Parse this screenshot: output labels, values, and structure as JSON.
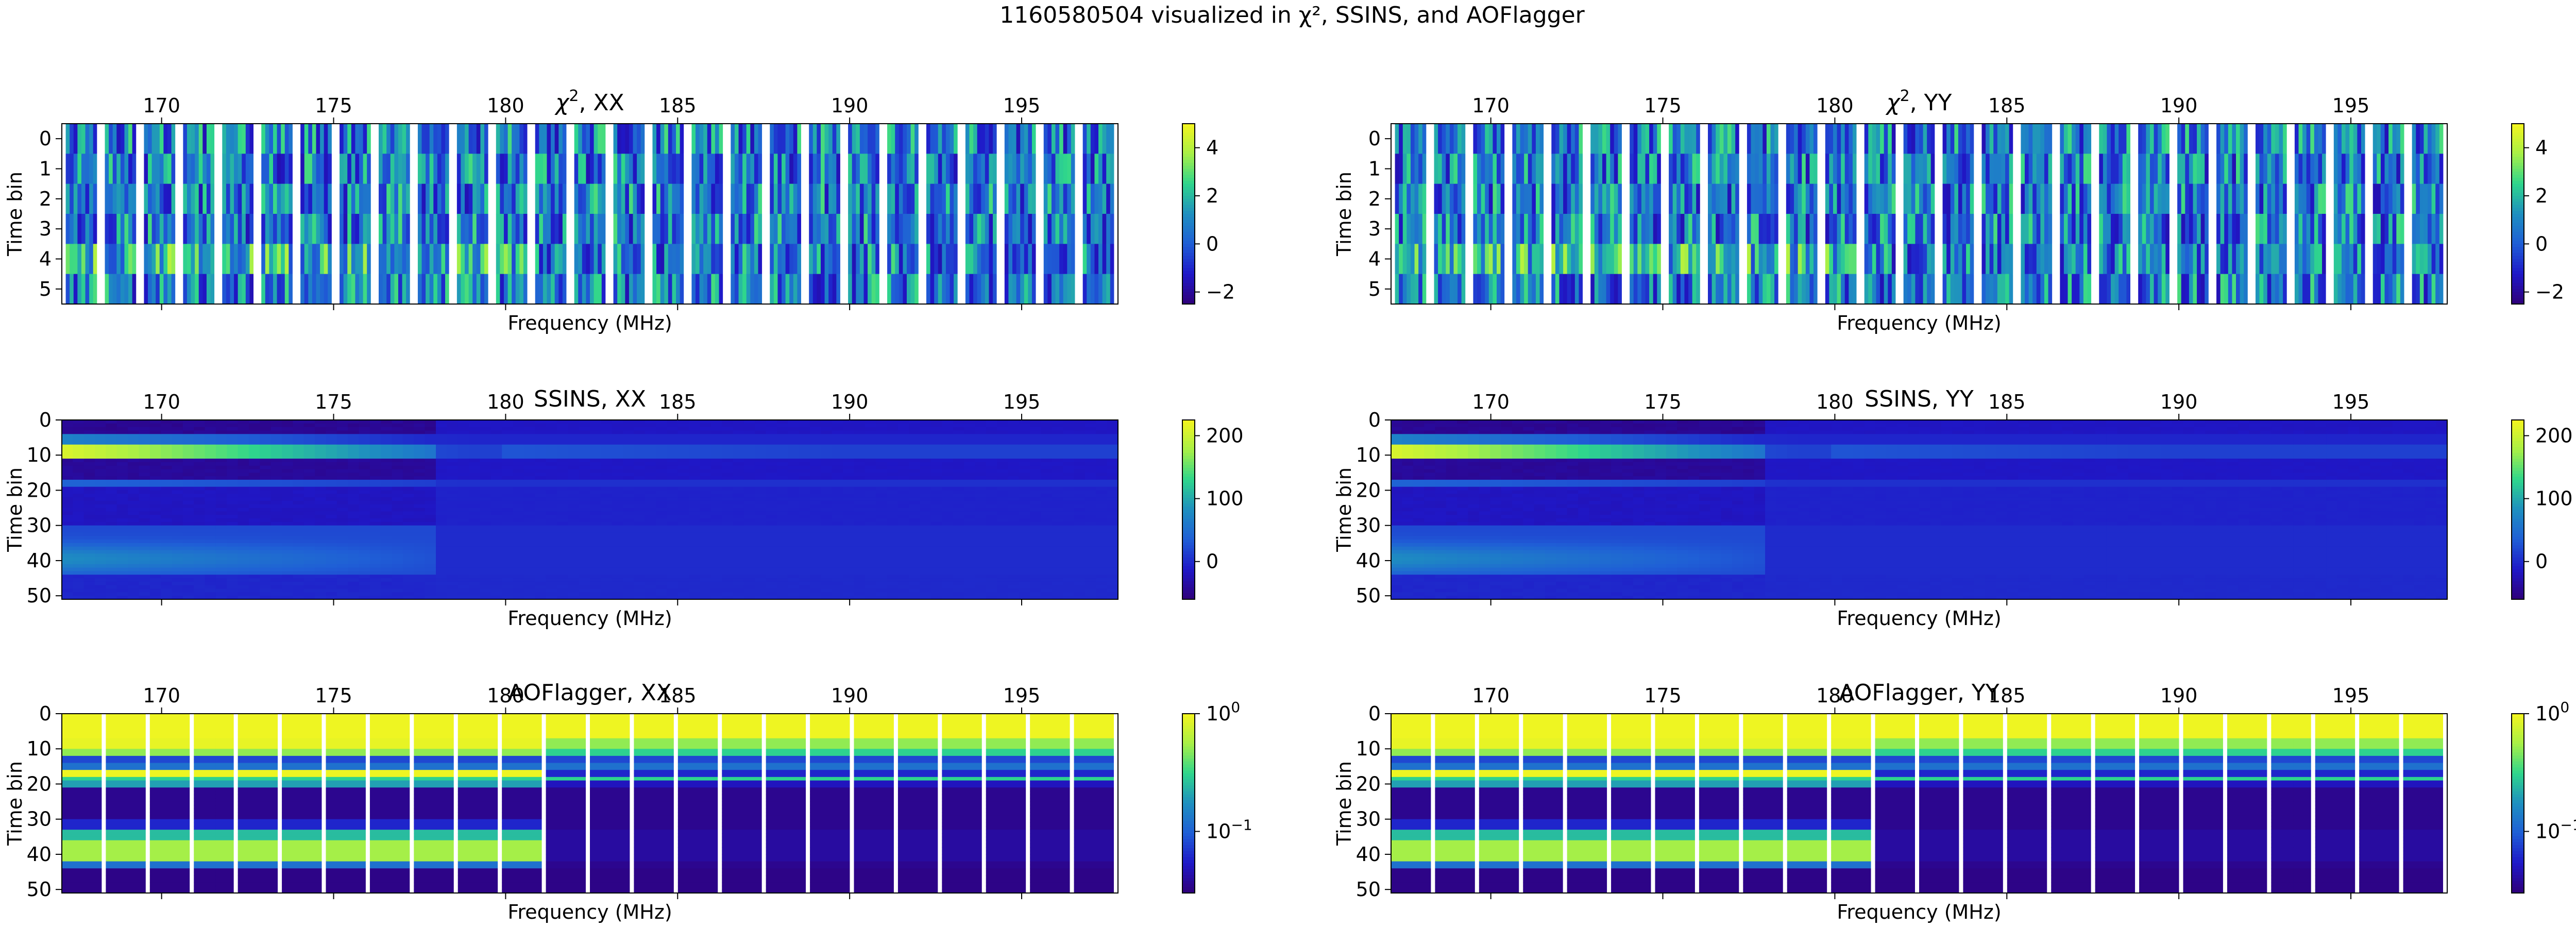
{
  "figure": {
    "suptitle": "1160580504 visualized in χ², SSINS, and AOFlagger"
  },
  "colormap": [
    "#30007a",
    "#1f18c8",
    "#1f5fd6",
    "#1e8fc0",
    "#2fd68c",
    "#a8f046",
    "#f5f51e"
  ],
  "chart_data": [
    {
      "type": "heatmap",
      "id": "chi2-xx",
      "title": "χ², XX",
      "title_main": "χ",
      "title_sup": "2",
      "title_rest": ", XX",
      "xlabel": "Frequency (MHz)",
      "ylabel": "Time bin",
      "xlim": [
        167.1,
        197.8
      ],
      "ylim": [
        5.5,
        -0.5
      ],
      "xticks": [
        "170",
        "175",
        "180",
        "185",
        "190",
        "195"
      ],
      "yticks": [
        "0",
        "1",
        "2",
        "3",
        "4",
        "5"
      ],
      "colorbar": {
        "scale": "linear",
        "vmin": -2.5,
        "vmax": 5,
        "ticks": [
          "4",
          "2",
          "0",
          "−2"
        ]
      }
    },
    {
      "type": "heatmap",
      "id": "chi2-yy",
      "title": "χ², YY",
      "title_main": "χ",
      "title_sup": "2",
      "title_rest": ", YY",
      "xlabel": "Frequency (MHz)",
      "ylabel": "Time bin",
      "xlim": [
        167.1,
        197.8
      ],
      "ylim": [
        5.5,
        -0.5
      ],
      "xticks": [
        "170",
        "175",
        "180",
        "185",
        "190",
        "195"
      ],
      "yticks": [
        "0",
        "1",
        "2",
        "3",
        "4",
        "5"
      ],
      "colorbar": {
        "scale": "linear",
        "vmin": -2.5,
        "vmax": 5,
        "ticks": [
          "4",
          "2",
          "0",
          "−2"
        ]
      }
    },
    {
      "type": "heatmap",
      "id": "ssins-xx",
      "title": "SSINS, XX",
      "xlabel": "Frequency (MHz)",
      "ylabel": "Time bin",
      "xlim": [
        167.1,
        197.8
      ],
      "ylim": [
        51,
        0
      ],
      "xticks": [
        "170",
        "175",
        "180",
        "185",
        "190",
        "195"
      ],
      "yticks": [
        "0",
        "10",
        "20",
        "30",
        "40",
        "50"
      ],
      "colorbar": {
        "scale": "linear",
        "vmin": -60,
        "vmax": 225,
        "ticks": [
          "200",
          "100",
          "0"
        ]
      }
    },
    {
      "type": "heatmap",
      "id": "ssins-yy",
      "title": "SSINS, YY",
      "xlabel": "Frequency (MHz)",
      "ylabel": "Time bin",
      "xlim": [
        167.1,
        197.8
      ],
      "ylim": [
        51,
        0
      ],
      "xticks": [
        "170",
        "175",
        "180",
        "185",
        "190",
        "195"
      ],
      "yticks": [
        "0",
        "10",
        "20",
        "30",
        "40",
        "50"
      ],
      "colorbar": {
        "scale": "linear",
        "vmin": -60,
        "vmax": 225,
        "ticks": [
          "200",
          "100",
          "0"
        ]
      }
    },
    {
      "type": "heatmap",
      "id": "aof-xx",
      "title": "AOFlagger, XX",
      "xlabel": "Frequency (MHz)",
      "ylabel": "Time bin",
      "xlim": [
        167.1,
        197.8
      ],
      "ylim": [
        51,
        0
      ],
      "xticks": [
        "170",
        "175",
        "180",
        "185",
        "190",
        "195"
      ],
      "yticks": [
        "0",
        "10",
        "20",
        "30",
        "40",
        "50"
      ],
      "colorbar": {
        "scale": "log",
        "vmin": 0.03,
        "vmax": 1,
        "ticks": [
          {
            "base": "10",
            "exp": "0"
          },
          {
            "base": "10",
            "exp": "−1"
          }
        ]
      }
    },
    {
      "type": "heatmap",
      "id": "aof-yy",
      "title": "AOFlagger, YY",
      "xlabel": "Frequency (MHz)",
      "ylabel": "Time bin",
      "xlim": [
        167.1,
        197.8
      ],
      "ylim": [
        51,
        0
      ],
      "xticks": [
        "170",
        "175",
        "180",
        "185",
        "190",
        "195"
      ],
      "yticks": [
        "0",
        "10",
        "20",
        "30",
        "40",
        "50"
      ],
      "colorbar": {
        "scale": "log",
        "vmin": 0.03,
        "vmax": 1,
        "ticks": [
          {
            "base": "10",
            "exp": "0"
          },
          {
            "base": "10",
            "exp": "−1"
          }
        ]
      }
    }
  ]
}
